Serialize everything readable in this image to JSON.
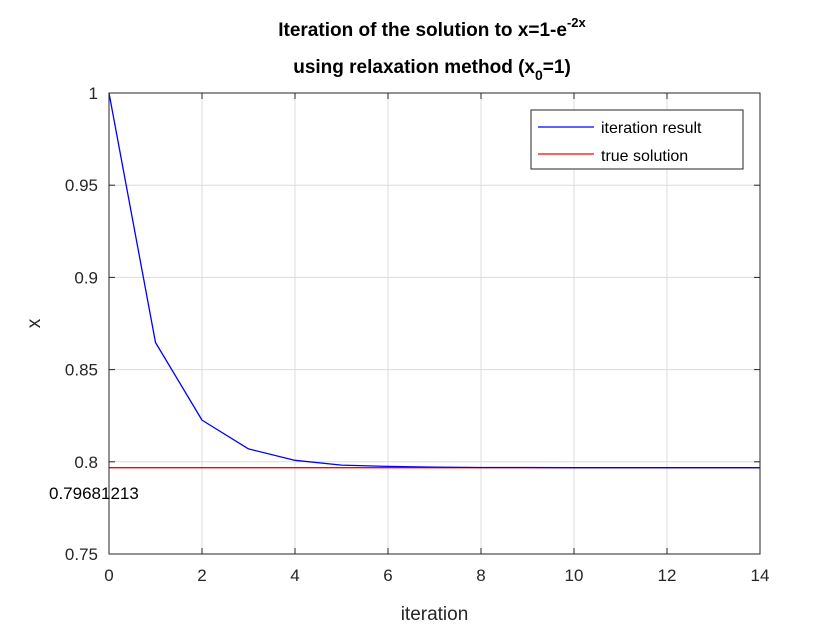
{
  "chart_data": {
    "type": "line",
    "title_line1_main": "Iteration of the solution to x=1-e",
    "title_line1_sup": "-2x",
    "title_line2_pre": "using relaxation method (x",
    "title_line2_sub": "0",
    "title_line2_post": "=1)",
    "xlabel": "iteration",
    "ylabel": "x",
    "xlim": [
      0,
      14
    ],
    "ylim": [
      0.75,
      1
    ],
    "xticks": [
      "0",
      "2",
      "4",
      "6",
      "8",
      "10",
      "12",
      "14"
    ],
    "yticks": [
      "0.75",
      "0.8",
      "0.85",
      "0.9",
      "0.95",
      "1"
    ],
    "grid": true,
    "legend_position": "top-right",
    "series": [
      {
        "name": "iteration result",
        "color": "#0000ff",
        "x": [
          0,
          1,
          2,
          3,
          4,
          5,
          6,
          7,
          8,
          9,
          10,
          11,
          12,
          13,
          14
        ],
        "y": [
          1,
          0.8647,
          0.8226,
          0.807,
          0.8008,
          0.7982,
          0.7975,
          0.7971,
          0.7969,
          0.7969,
          0.7968,
          0.7968,
          0.7968,
          0.7968,
          0.7968
        ]
      },
      {
        "name": "true solution",
        "color": "#ff0000",
        "x": [
          0,
          14
        ],
        "y": [
          0.79681213,
          0.79681213
        ]
      }
    ],
    "annotation": "0.79681213"
  }
}
